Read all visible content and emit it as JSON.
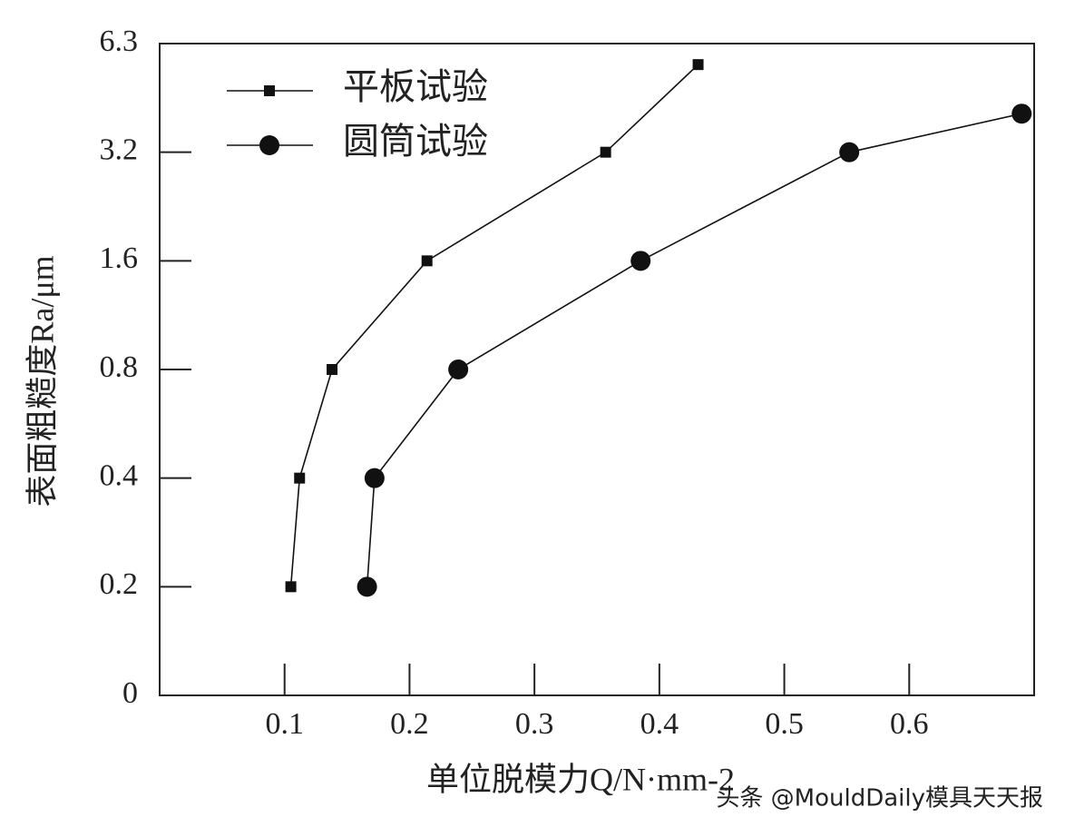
{
  "chart_data": {
    "type": "line",
    "xlabel": "单位脱模力Q/N·mm-2",
    "ylabel": "表面粗糙度Ra/μm",
    "watermark": "头条 @MouldDaily模具天天报",
    "xlim": [
      0,
      0.7
    ],
    "xticks": [
      0.1,
      0.2,
      0.3,
      0.4,
      0.5,
      0.6
    ],
    "ylim": [
      0,
      6.3
    ],
    "yticks": [
      0,
      0.2,
      0.4,
      0.8,
      1.6,
      3.2,
      6.3
    ],
    "legend": "upper left",
    "series": [
      {
        "name": "平板试验",
        "color": "#111111",
        "marker": "square",
        "x": [
          0.105,
          0.112,
          0.138,
          0.214,
          0.357,
          0.431
        ],
        "values": [
          0.2,
          0.4,
          0.8,
          1.6,
          3.2,
          5.7
        ]
      },
      {
        "name": "圆筒试验",
        "color": "#111111",
        "marker": "circle",
        "x": [
          0.166,
          0.172,
          0.239,
          0.385,
          0.552,
          0.69
        ],
        "values": [
          0.2,
          0.4,
          0.8,
          1.6,
          3.2,
          4.3
        ]
      }
    ]
  }
}
